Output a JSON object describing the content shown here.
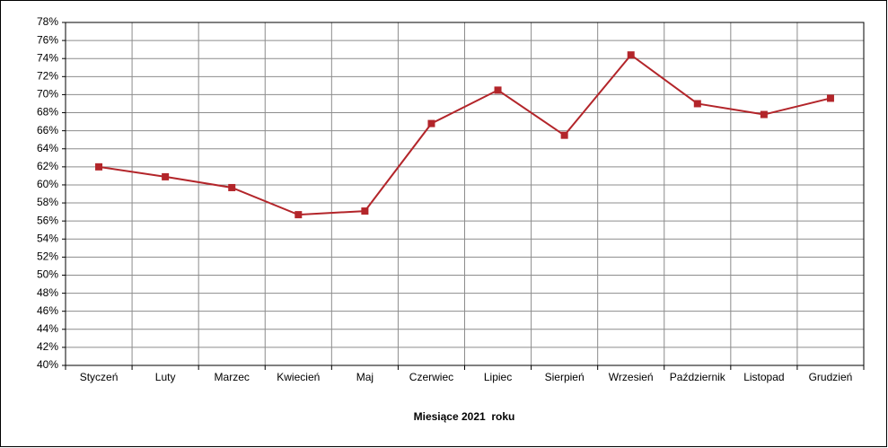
{
  "chart_data": {
    "type": "line",
    "x_label": "Miesiące 2021  roku",
    "categories": [
      "Styczeń",
      "Luty",
      "Marzec",
      "Kwiecień",
      "Maj",
      "Czerwiec",
      "Lipiec",
      "Sierpień",
      "Wrzesień",
      "Październik",
      "Listopad",
      "Grudzień"
    ],
    "series": [
      {
        "color": "#b3252a",
        "values": [
          62.0,
          60.9,
          59.7,
          56.7,
          57.1,
          66.8,
          70.5,
          65.5,
          74.4,
          69.0,
          67.8,
          69.6
        ]
      }
    ],
    "ylim": [
      40,
      78
    ],
    "yticks": [
      {
        "value": 40,
        "label": "40%"
      },
      {
        "value": 42,
        "label": "42%"
      },
      {
        "value": 44,
        "label": "44%"
      },
      {
        "value": 46,
        "label": "46%"
      },
      {
        "value": 48,
        "label": "48%"
      },
      {
        "value": 50,
        "label": "50%"
      },
      {
        "value": 52,
        "label": "52%"
      },
      {
        "value": 54,
        "label": "54%"
      },
      {
        "value": 56,
        "label": "56%"
      },
      {
        "value": 58,
        "label": "58%"
      },
      {
        "value": 60,
        "label": "60%"
      },
      {
        "value": 62,
        "label": "62%"
      },
      {
        "value": 64,
        "label": "64%"
      },
      {
        "value": 66,
        "label": "66%"
      },
      {
        "value": 68,
        "label": "68%"
      },
      {
        "value": 70,
        "label": "70%"
      },
      {
        "value": 72,
        "label": "72%"
      },
      {
        "value": 74,
        "label": "74%"
      },
      {
        "value": 76,
        "label": "76%"
      },
      {
        "value": 78,
        "label": "78%"
      }
    ],
    "grid": true
  }
}
